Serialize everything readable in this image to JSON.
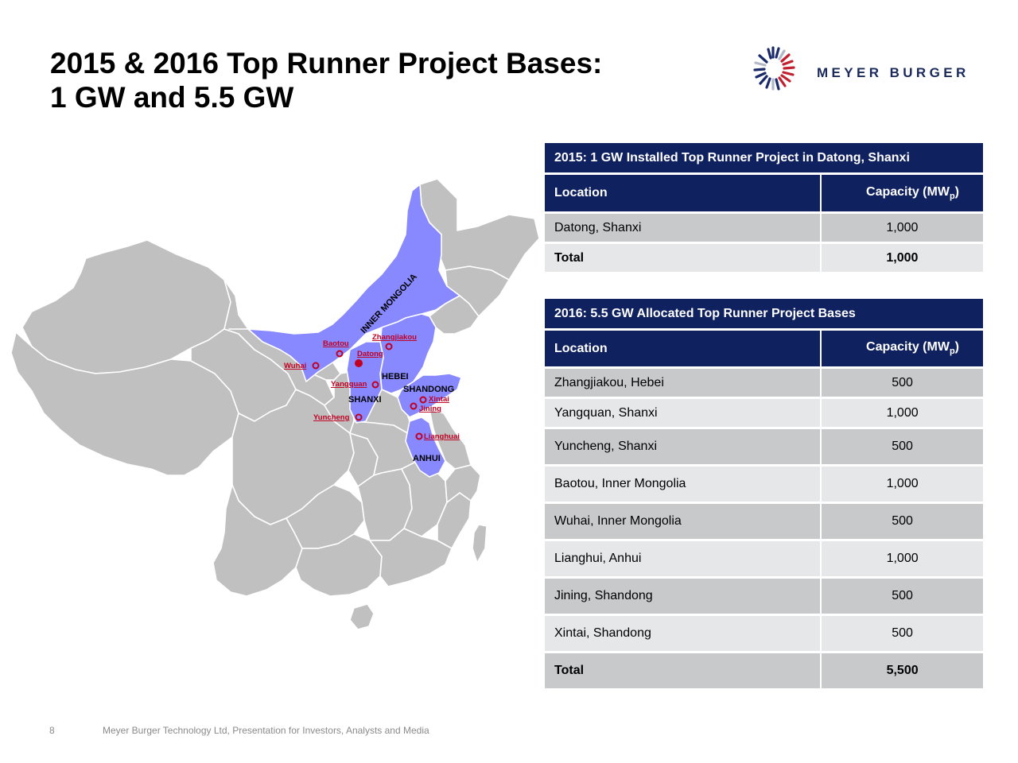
{
  "slide": {
    "title_line1": "2015 & 2016 Top Runner Project Bases:",
    "title_line2": "1 GW and 5.5 GW",
    "page_number": "8",
    "footer_text": "Meyer Burger Technology Ltd, Presentation for Investors, Analysts and Media"
  },
  "logo": {
    "text": "MEYER BURGER"
  },
  "map": {
    "highlight_color": "#8888ff",
    "base_color": "#c0c0c0",
    "marker_color": "#c00020",
    "province_labels": [
      "INNER MONGOLIA",
      "HEBEI",
      "SHANXI",
      "SHANDONG",
      "ANHUI"
    ],
    "city_labels": [
      "Zhangjiakou",
      "Baotou",
      "Datong",
      "Wuhai",
      "Yangquan",
      "Yuncheng",
      "Xintai",
      "Jining",
      "Lianghuai"
    ]
  },
  "table_2015": {
    "title": "2015: 1 GW Installed Top Runner Project in Datong, Shanxi",
    "col_location": "Location",
    "col_capacity": "Capacity (MW",
    "col_capacity_sub": "p",
    "col_capacity_close": ")",
    "rows": [
      {
        "location": "Datong, Shanxi",
        "capacity": "1,000"
      }
    ],
    "total_label": "Total",
    "total_value": "1,000"
  },
  "table_2016": {
    "title": "2016: 5.5 GW Allocated Top Runner Project Bases",
    "col_location": "Location",
    "col_capacity": "Capacity (MW",
    "col_capacity_sub": "p",
    "col_capacity_close": ")",
    "rows": [
      {
        "location": "Zhangjiakou, Hebei",
        "capacity": "500"
      },
      {
        "location": "Yangquan, Shanxi",
        "capacity": "1,000"
      },
      {
        "location": "Yuncheng, Shanxi",
        "capacity": "500"
      },
      {
        "location": "Baotou, Inner Mongolia",
        "capacity": "1,000"
      },
      {
        "location": "Wuhai, Inner Mongolia",
        "capacity": "500"
      },
      {
        "location": "Lianghui, Anhui",
        "capacity": "1,000"
      },
      {
        "location": "Jining, Shandong",
        "capacity": "500"
      },
      {
        "location": "Xintai, Shandong",
        "capacity": "500"
      }
    ],
    "total_label": "Total",
    "total_value": "5,500"
  }
}
